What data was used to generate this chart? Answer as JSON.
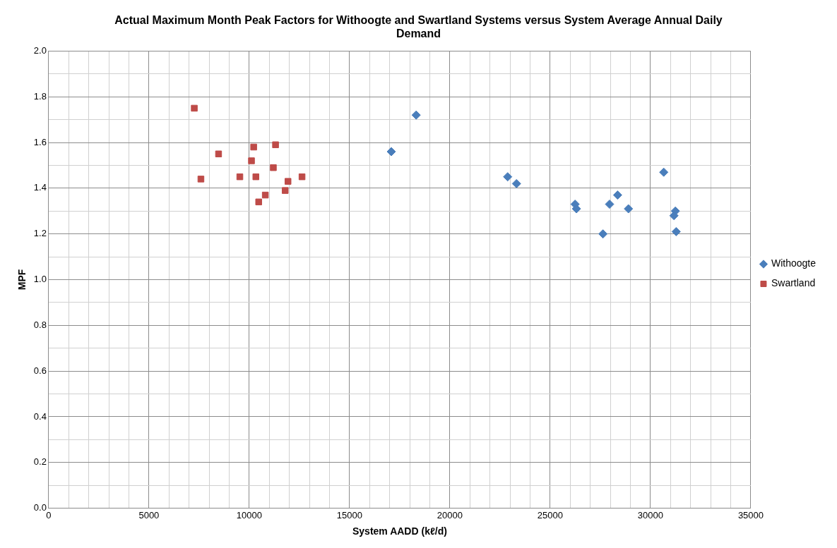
{
  "chart_data": {
    "type": "scatter",
    "title": "Actual Maximum Month Peak Factors for Withoogte and Swartland Systems versus System Average Annual Daily Demand",
    "xlabel": "System AADD (kℓ/d)",
    "ylabel": "MPF",
    "xlim": [
      0,
      35000
    ],
    "xticks": [
      0,
      {
        "value": 1000,
        "label": null
      },
      {
        "value": 2000,
        "label": null
      },
      {
        "value": 3000,
        "label": null
      },
      {
        "value": 4000,
        "label": null
      },
      5000,
      {
        "value": 6000,
        "label": null
      },
      {
        "value": 7000,
        "label": null
      },
      {
        "value": 8000,
        "label": null
      },
      {
        "value": 9000,
        "label": null
      },
      10000,
      {
        "value": 11000,
        "label": null
      },
      {
        "value": 12000,
        "label": null
      },
      {
        "value": 13000,
        "label": null
      },
      {
        "value": 14000,
        "label": null
      },
      15000,
      {
        "value": 16000,
        "label": null
      },
      {
        "value": 17000,
        "label": null
      },
      {
        "value": 18000,
        "label": null
      },
      {
        "value": 19000,
        "label": null
      },
      20000,
      {
        "value": 21000,
        "label": null
      },
      {
        "value": 22000,
        "label": null
      },
      {
        "value": 23000,
        "label": null
      },
      {
        "value": 24000,
        "label": null
      },
      25000,
      {
        "value": 26000,
        "label": null
      },
      {
        "value": 27000,
        "label": null
      },
      {
        "value": 28000,
        "label": null
      },
      {
        "value": 29000,
        "label": null
      },
      30000,
      {
        "value": 31000,
        "label": null
      },
      {
        "value": 32000,
        "label": null
      },
      {
        "value": 33000,
        "label": null
      },
      {
        "value": 34000,
        "label": null
      },
      35000
    ],
    "ylim": [
      0,
      2
    ],
    "yticks": [
      {
        "value": 0,
        "label": "0.0"
      },
      {
        "value": 0.1,
        "label": null
      },
      {
        "value": 0.2,
        "label": "0.2"
      },
      {
        "value": 0.3,
        "label": null
      },
      {
        "value": 0.4,
        "label": "0.4"
      },
      {
        "value": 0.5,
        "label": null
      },
      {
        "value": 0.6,
        "label": "0.6"
      },
      {
        "value": 0.7,
        "label": null
      },
      {
        "value": 0.8,
        "label": "0.8"
      },
      {
        "value": 0.9,
        "label": null
      },
      {
        "value": 1,
        "label": "1.0"
      },
      {
        "value": 1.1,
        "label": null
      },
      {
        "value": 1.2,
        "label": "1.2"
      },
      {
        "value": 1.3,
        "label": null
      },
      {
        "value": 1.4,
        "label": "1.4"
      },
      {
        "value": 1.5,
        "label": null
      },
      {
        "value": 1.6,
        "label": "1.6"
      },
      {
        "value": 1.7,
        "label": null
      },
      {
        "value": 1.8,
        "label": "1.8"
      },
      {
        "value": 1.9,
        "label": null
      },
      {
        "value": 2,
        "label": "2.0"
      }
    ],
    "grid": true,
    "legend": "right",
    "series": [
      {
        "name": "Withoogte",
        "color": "#4a7ebb",
        "marker": "diamond",
        "x": [
          17080,
          18320,
          22880,
          23320,
          26240,
          26310,
          27630,
          27960,
          28360,
          28900,
          30660,
          31170,
          31240,
          31280
        ],
        "values": [
          1.56,
          1.72,
          1.45,
          1.42,
          1.33,
          1.31,
          1.2,
          1.33,
          1.37,
          1.31,
          1.47,
          1.28,
          1.3,
          1.21
        ]
      },
      {
        "name": "Swartland",
        "color": "#be4b48",
        "marker": "square",
        "x": [
          7260,
          7590,
          8470,
          9530,
          10110,
          10220,
          10330,
          10470,
          10800,
          11200,
          11310,
          11790,
          11930,
          12630
        ],
        "values": [
          1.75,
          1.44,
          1.55,
          1.45,
          1.52,
          1.58,
          1.45,
          1.34,
          1.37,
          1.49,
          1.59,
          1.39,
          1.43,
          1.45
        ]
      }
    ]
  }
}
